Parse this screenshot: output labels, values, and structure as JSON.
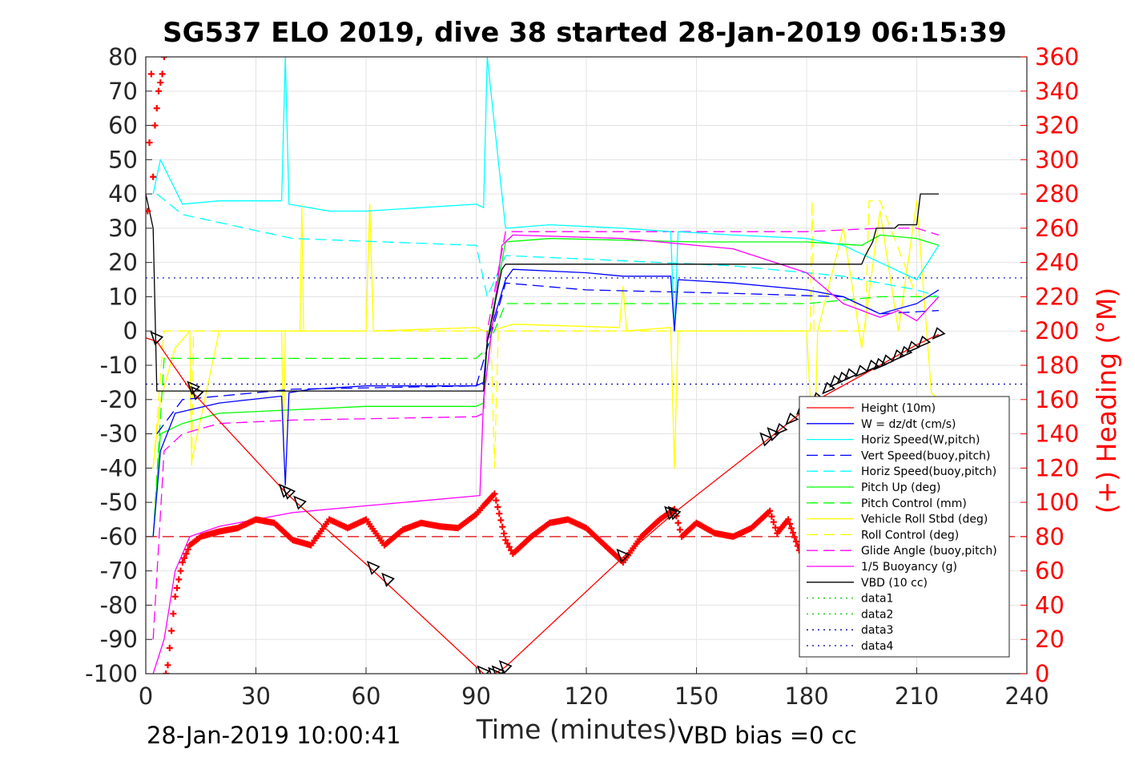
{
  "chart_data": {
    "type": "line",
    "title": "SG537 ELO 2019, dive 38 started 28-Jan-2019 06:15:39",
    "xlabel": "Time (minutes)",
    "ylabel": "",
    "ylabel_right": "(+) Heading (°M)",
    "xlim": [
      0,
      240
    ],
    "ylim": [
      -100,
      80
    ],
    "ylim_right": [
      0,
      360
    ],
    "x_ticks": [
      "0",
      "30",
      "60",
      "90",
      "120",
      "150",
      "180",
      "210",
      "240"
    ],
    "y_ticks": [
      "80",
      "70",
      "60",
      "50",
      "40",
      "30",
      "20",
      "10",
      "0",
      "-10",
      "-20",
      "-30",
      "-40",
      "-50",
      "-60",
      "-70",
      "-80",
      "-90",
      "-100"
    ],
    "y_ticks_right": [
      "360",
      "340",
      "320",
      "300",
      "280",
      "260",
      "240",
      "220",
      "200",
      "180",
      "160",
      "140",
      "120",
      "100",
      "80",
      "60",
      "40",
      "20",
      "0"
    ],
    "grid": true,
    "legend_position": "bottom-right",
    "footer_left": "28-Jan-2019 10:00:41",
    "footer_right": "VBD bias =0 cc",
    "colors": {
      "height": "#ff0000",
      "w": "#0000ff",
      "horiz_w": "#00ffff",
      "vert_buoy": "#0000ff",
      "horiz_buoy": "#00ffff",
      "pitch_up": "#00ff00",
      "pitch_ctrl": "#00ff00",
      "roll": "#ffff00",
      "roll_ctrl": "#ffff00",
      "glide": "#ff00ff",
      "buoyancy": "#ff00ff",
      "vbd": "#000000",
      "heading": "#ff0000",
      "heading_ref": "#dd0000"
    },
    "series": [
      {
        "name": "Height (10m)",
        "key": "height",
        "style": "solid",
        "x": [
          0,
          3,
          12,
          38,
          42,
          61,
          65,
          92,
          95,
          98,
          130,
          144,
          169,
          176,
          183,
          200,
          210,
          216
        ],
        "y": [
          -2,
          -3,
          -17,
          -47,
          -51,
          -69,
          -73,
          -100,
          -100,
          -98,
          -66,
          -53,
          -32,
          -26,
          -20,
          -10,
          -4,
          -1
        ]
      },
      {
        "name": "W = dz/dt (cm/s)",
        "key": "w",
        "style": "solid",
        "x": [
          2,
          4,
          8,
          20,
          37,
          38,
          39,
          45,
          60,
          90,
          92,
          93,
          98,
          100,
          120,
          130,
          143,
          144,
          145,
          160,
          180,
          190,
          200,
          210,
          216
        ],
        "y": [
          -60,
          -35,
          -24,
          -21,
          -19,
          -45,
          -18,
          -17,
          -16,
          -16,
          -15,
          -3,
          15,
          18,
          17,
          16,
          16,
          0,
          15,
          14,
          12,
          10,
          5,
          8,
          12
        ]
      },
      {
        "name": "Horiz Speed(W,pitch)",
        "key": "horiz_w",
        "style": "solid",
        "x": [
          2,
          4,
          10,
          20,
          37,
          38,
          39,
          50,
          60,
          90,
          92,
          93,
          95,
          98,
          110,
          130,
          143,
          144,
          145,
          160,
          180,
          190,
          200,
          210,
          216
        ],
        "y": [
          40,
          50,
          37,
          38,
          38,
          80,
          37,
          35,
          35,
          37,
          36,
          80,
          60,
          30,
          31,
          30,
          29,
          0,
          29,
          28,
          27,
          25,
          20,
          15,
          25
        ]
      },
      {
        "name": "Vert Speed(buoy,pitch)",
        "key": "vert_buoy",
        "style": "dashed",
        "x": [
          3,
          10,
          40,
          90,
          93,
          98,
          120,
          160,
          190,
          200,
          216
        ],
        "y": [
          -30,
          -20,
          -17,
          -16,
          -5,
          14,
          12,
          11,
          10,
          5,
          6
        ]
      },
      {
        "name": "Horiz Speed(buoy,pitch)",
        "key": "horiz_buoy",
        "style": "dashed",
        "x": [
          3,
          10,
          40,
          90,
          93,
          98,
          120,
          160,
          190,
          210,
          216
        ],
        "y": [
          40,
          34,
          27,
          25,
          10,
          22,
          21,
          19,
          16,
          12,
          10
        ]
      },
      {
        "name": "Pitch Up (deg)",
        "key": "pitch_up",
        "style": "solid",
        "x": [
          2,
          4,
          10,
          20,
          40,
          60,
          90,
          92,
          93,
          98,
          110,
          150,
          180,
          195,
          200,
          210,
          216
        ],
        "y": [
          -60,
          -30,
          -27,
          -24,
          -23,
          -22,
          -22,
          -21,
          -3,
          26,
          27,
          26,
          26,
          25,
          28,
          27,
          25
        ]
      },
      {
        "name": "Pitch Control (mm)",
        "key": "pitch_ctrl",
        "style": "dashed",
        "x": [
          2,
          5,
          90,
          93,
          98,
          130,
          180,
          200,
          210,
          216
        ],
        "y": [
          -60,
          -8,
          -8,
          -5,
          8,
          8,
          8,
          10,
          10,
          10
        ]
      },
      {
        "name": "Vehicle Roll Stbd (deg)",
        "key": "roll",
        "style": "solid",
        "x": [
          2,
          4,
          8,
          12,
          12.5,
          20,
          37,
          37.5,
          38,
          42,
          42.5,
          43,
          60,
          61,
          62,
          90,
          92,
          94,
          100,
          129,
          130,
          131,
          143,
          144,
          145,
          160,
          180,
          182,
          183,
          190,
          195,
          200,
          205,
          210,
          214,
          216
        ],
        "y": [
          -40,
          -20,
          -5,
          0,
          -38,
          0,
          0,
          -35,
          0,
          0,
          37,
          0,
          0,
          37,
          0,
          1,
          0,
          0,
          2,
          1,
          13,
          0,
          1,
          -40,
          0,
          0,
          0,
          -40,
          0,
          30,
          -5,
          35,
          0,
          38,
          -18,
          -20
        ]
      },
      {
        "name": "Roll Control (deg)",
        "key": "roll_ctrl",
        "style": "dashed",
        "x": [
          2,
          5,
          12,
          12.5,
          13,
          60,
          61,
          62,
          94,
          95,
          96,
          181,
          181.5,
          182,
          196,
          197,
          200,
          210,
          216
        ],
        "y": [
          -40,
          0,
          0,
          -40,
          0,
          0,
          37,
          0,
          0,
          -40,
          0,
          0,
          38,
          0,
          0,
          38,
          38,
          10,
          10
        ]
      },
      {
        "name": "Glide Angle (buoy,pitch)",
        "key": "glide",
        "style": "dashed",
        "x": [
          2,
          5,
          10,
          20,
          40,
          90,
          92,
          93,
          98,
          130,
          180,
          200,
          210,
          216
        ],
        "y": [
          -90,
          -35,
          -30,
          -27,
          -26,
          -25,
          -24,
          0,
          29,
          29,
          29,
          30,
          30,
          28
        ]
      },
      {
        "name": "1/5 Buoyancy (g)",
        "key": "buoyancy",
        "style": "solid",
        "x": [
          2,
          5,
          8,
          12,
          20,
          40,
          60,
          91,
          92,
          97,
          100,
          130,
          160,
          180,
          190,
          200,
          205,
          210,
          216
        ],
        "y": [
          -100,
          -90,
          -70,
          -60,
          -57,
          -53,
          -51,
          -48,
          -20,
          25,
          28,
          27,
          24,
          17,
          8,
          4,
          6,
          3,
          10
        ]
      },
      {
        "name": "VBD (10 cc)",
        "key": "vbd",
        "style": "solid",
        "x": [
          0,
          2,
          3,
          37,
          37.5,
          92,
          93,
          97,
          98,
          130,
          131,
          195,
          196,
          198,
          199,
          204,
          205,
          210,
          211,
          216
        ],
        "y": [
          40,
          30,
          -17.5,
          -17.5,
          -17.5,
          -17.5,
          -3,
          18,
          19.5,
          19.5,
          19.5,
          19.5,
          22,
          26,
          30,
          30,
          31,
          31,
          40,
          40
        ]
      },
      {
        "name": "data1",
        "key": "data1",
        "style": "dotted",
        "x": [],
        "y": []
      },
      {
        "name": "data2",
        "key": "data2",
        "style": "dotted",
        "x": [],
        "y": []
      },
      {
        "name": "data3",
        "key": "data3",
        "style": "dotted",
        "x": [],
        "y": []
      },
      {
        "name": "data4",
        "key": "data4",
        "style": "dotted",
        "x": [],
        "y": []
      }
    ],
    "heading": {
      "axis": "right",
      "x": [
        0.5,
        1,
        1.5,
        2,
        2.5,
        3,
        3.5,
        4,
        4.5,
        5,
        5.5,
        6,
        7,
        8,
        10,
        12,
        15,
        20,
        25,
        30,
        35,
        40,
        45,
        50,
        55,
        60,
        65,
        70,
        75,
        80,
        85,
        90,
        92,
        95,
        98,
        100,
        105,
        110,
        115,
        120,
        125,
        130,
        135,
        140,
        144,
        146,
        150,
        155,
        160,
        165,
        170,
        172,
        175,
        178,
        180,
        183
      ],
      "y": [
        270,
        310,
        350,
        290,
        320,
        330,
        340,
        345,
        350,
        360,
        0,
        5,
        25,
        45,
        65,
        75,
        80,
        83,
        85,
        90,
        88,
        78,
        75,
        90,
        85,
        90,
        75,
        84,
        88,
        86,
        85,
        93,
        98,
        105,
        78,
        70,
        80,
        88,
        90,
        85,
        75,
        65,
        80,
        90,
        96,
        80,
        88,
        82,
        80,
        85,
        95,
        82,
        90,
        72,
        85,
        90
      ]
    },
    "heading_ref": 80,
    "reference_lines": [
      {
        "y": 15.5,
        "color": "#0000aa",
        "style": "dotted"
      },
      {
        "y": -15.5,
        "color": "#0000aa",
        "style": "dotted"
      }
    ],
    "markers": {
      "x": [
        3,
        13,
        14,
        38,
        39,
        42,
        62,
        66,
        92,
        95,
        96,
        98,
        130,
        143,
        144,
        169,
        171,
        173,
        176,
        179,
        183,
        186,
        188,
        190,
        192,
        195,
        198,
        200,
        202,
        205,
        207,
        209,
        212,
        216
      ],
      "y": [
        -2,
        -16.5,
        -18,
        -46.5,
        -47,
        -50,
        -69,
        -72.5,
        -99.5,
        -100,
        -99.5,
        -98,
        -65.5,
        -53,
        -53,
        -31.5,
        -30,
        -29,
        -26,
        -23,
        -20,
        -17,
        -15,
        -14,
        -13,
        -12,
        -10.5,
        -10,
        -9,
        -7.5,
        -6.5,
        -5,
        -3.5,
        -1
      ]
    }
  }
}
